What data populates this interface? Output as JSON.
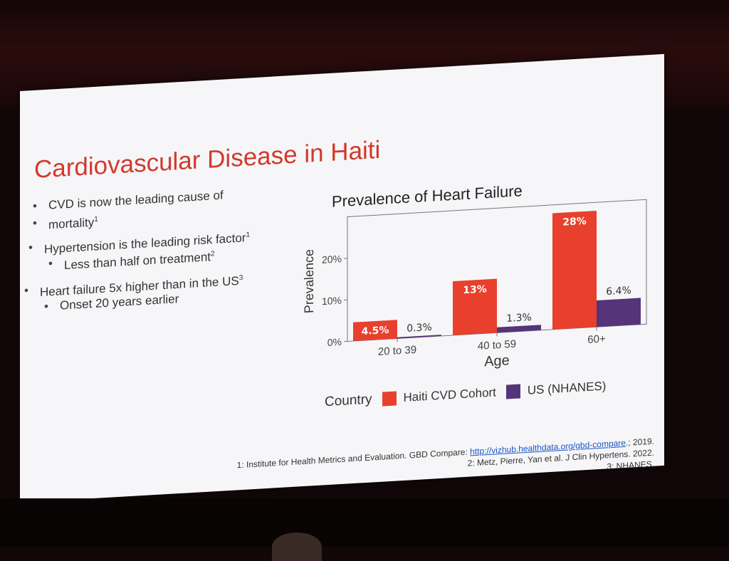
{
  "slide": {
    "title": "Cardiovascular Disease in Haiti",
    "bullets": [
      {
        "level": 1,
        "text": "CVD is now the leading cause of",
        "ref": ""
      },
      {
        "level": 1,
        "text": "mortality",
        "ref": "1",
        "continuation": true
      },
      {
        "level": 1,
        "text": "Hypertension is the leading risk factor",
        "ref": "1"
      },
      {
        "level": 2,
        "text": "Less than half on treatment",
        "ref": "2"
      },
      {
        "level": 1,
        "text": "Heart failure 5x higher than in the US",
        "ref": "3"
      },
      {
        "level": 2,
        "text": "Onset 20 years earlier",
        "ref": ""
      }
    ],
    "footnotes": {
      "line1_prefix": "1: Institute for Health Metrics and Evaluation. GBD Compare: ",
      "line1_link": "http://vizhub.healthdata.org/gbd-compare",
      "line1_suffix": ".; 2019.",
      "line2": "2: Metz, Pierre, Yan et al. J Clin Hypertens. 2022.",
      "line3": "3: NHANES."
    }
  },
  "colors": {
    "title_red": "#d2392c",
    "haiti": "#e8402c",
    "us": "#55347a"
  },
  "chart_data": {
    "type": "bar",
    "title": "Prevalence of Heart Failure",
    "xlabel": "Age",
    "ylabel": "Prevalence",
    "categories": [
      "20 to 39",
      "40 to 59",
      "60+"
    ],
    "series": [
      {
        "name": "Haiti CVD Cohort",
        "values": [
          4.5,
          13,
          28
        ],
        "labels": [
          "4.5%",
          "13%",
          "28%"
        ]
      },
      {
        "name": "US (NHANES)",
        "values": [
          0.3,
          1.3,
          6.4
        ],
        "labels": [
          "0.3%",
          "1.3%",
          "6.4%"
        ]
      }
    ],
    "yticks": [
      0,
      10,
      20
    ],
    "ytick_labels": [
      "0%",
      "10%",
      "20%"
    ],
    "ylim": [
      0,
      30
    ],
    "legend_title": "Country",
    "legend_position": "bottom",
    "grid": false
  }
}
